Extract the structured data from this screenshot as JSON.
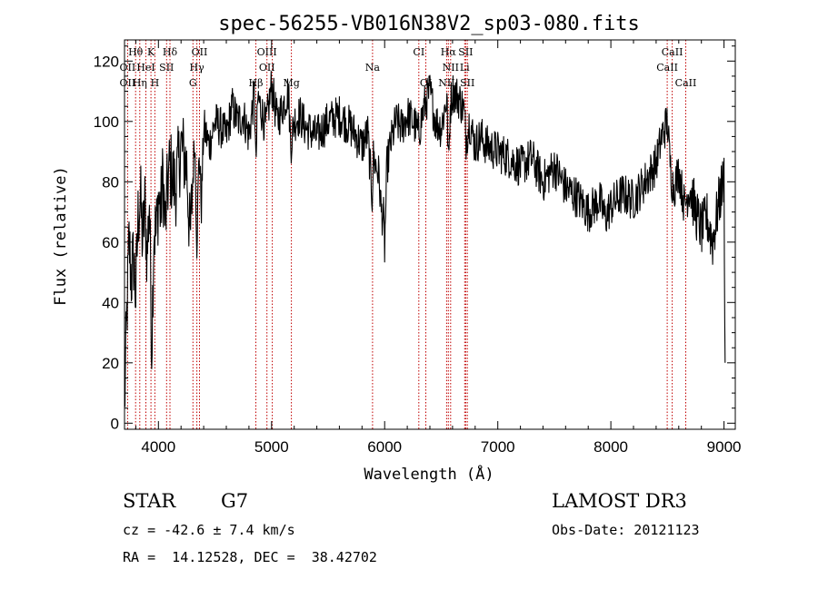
{
  "chart_data": {
    "type": "line",
    "title": "spec-56255-VB016N38V2_sp03-080.fits",
    "xlabel": "Wavelength (Å)",
    "ylabel": "Flux (relative)",
    "xlim": [
      3700,
      9100
    ],
    "ylim": [
      -2,
      127
    ],
    "x_ticks": [
      4000,
      5000,
      6000,
      7000,
      8000,
      9000
    ],
    "y_ticks": [
      0,
      20,
      40,
      60,
      80,
      100,
      120
    ],
    "grid": false,
    "series": [
      {
        "name": "flux",
        "x": [
          3700,
          3720,
          3740,
          3760,
          3780,
          3800,
          3820,
          3840,
          3860,
          3880,
          3900,
          3920,
          3940,
          3960,
          3980,
          4000,
          4020,
          4040,
          4060,
          4080,
          4100,
          4150,
          4200,
          4250,
          4280,
          4300,
          4320,
          4340,
          4360,
          4380,
          4400,
          4450,
          4500,
          4550,
          4600,
          4650,
          4700,
          4750,
          4800,
          4850,
          4860,
          4880,
          4900,
          4950,
          5000,
          5050,
          5100,
          5150,
          5170,
          5200,
          5250,
          5300,
          5400,
          5500,
          5600,
          5700,
          5800,
          5850,
          5890,
          5900,
          5950,
          5970,
          5990,
          6000,
          6020,
          6050,
          6100,
          6150,
          6200,
          6250,
          6300,
          6350,
          6400,
          6450,
          6500,
          6550,
          6565,
          6580,
          6600,
          6650,
          6700,
          6720,
          6750,
          6800,
          6850,
          6900,
          7000,
          7100,
          7200,
          7300,
          7400,
          7500,
          7600,
          7700,
          7800,
          7850,
          7900,
          7950,
          8000,
          8100,
          8200,
          8300,
          8400,
          8450,
          8500,
          8520,
          8540,
          8560,
          8600,
          8650,
          8700,
          8750,
          8800,
          8850,
          8900,
          8950,
          8980,
          9000,
          9010
        ],
        "y": [
          5,
          35,
          60,
          48,
          55,
          42,
          68,
          75,
          60,
          72,
          55,
          75,
          25,
          65,
          62,
          75,
          70,
          82,
          65,
          78,
          85,
          78,
          92,
          85,
          60,
          78,
          95,
          60,
          90,
          72,
          98,
          92,
          100,
          98,
          95,
          105,
          100,
          102,
          95,
          110,
          85,
          108,
          105,
          98,
          112,
          100,
          105,
          110,
          92,
          100,
          102,
          98,
          95,
          100,
          102,
          98,
          92,
          96,
          75,
          88,
          82,
          70,
          68,
          58,
          85,
          92,
          100,
          98,
          102,
          100,
          96,
          105,
          110,
          100,
          98,
          108,
          85,
          105,
          110,
          108,
          104,
          94,
          100,
          92,
          95,
          92,
          90,
          88,
          85,
          88,
          80,
          85,
          78,
          75,
          70,
          72,
          74,
          68,
          72,
          76,
          74,
          80,
          86,
          95,
          100,
          88,
          80,
          78,
          84,
          72,
          78,
          70,
          64,
          68,
          60,
          72,
          78,
          82,
          20
        ],
        "color": "#000000"
      }
    ],
    "annotations": [
      {
        "label": "Hθ",
        "x": 3798,
        "row": 0
      },
      {
        "label": "K",
        "x": 3934,
        "row": 0
      },
      {
        "label": "Hδ",
        "x": 4102,
        "row": 0
      },
      {
        "label": "OII",
        "x": 4363,
        "row": 0
      },
      {
        "label": "OIII",
        "x": 4959,
        "row": 0
      },
      {
        "label": "CI",
        "x": 6302,
        "row": 0
      },
      {
        "label": "Hα",
        "x": 6563,
        "row": 0
      },
      {
        "label": "SII",
        "x": 6717,
        "row": 0
      },
      {
        "label": "CaII",
        "x": 8542,
        "row": 0
      },
      {
        "label": "OII",
        "x": 3727,
        "row": 1
      },
      {
        "label": "HeI",
        "x": 3889,
        "row": 1
      },
      {
        "label": "SII",
        "x": 4072,
        "row": 1
      },
      {
        "label": "Hγ",
        "x": 4340,
        "row": 1
      },
      {
        "label": "OII",
        "x": 4959,
        "row": 1
      },
      {
        "label": "Na",
        "x": 5893,
        "row": 1
      },
      {
        "label": "NII",
        "x": 6583,
        "row": 1
      },
      {
        "label": "Li",
        "x": 6708,
        "row": 1
      },
      {
        "label": "CaII",
        "x": 8498,
        "row": 1
      },
      {
        "label": "OII",
        "x": 3727,
        "row": 2
      },
      {
        "label": "Hη",
        "x": 3835,
        "row": 2
      },
      {
        "label": "H",
        "x": 3968,
        "row": 2
      },
      {
        "label": "G",
        "x": 4305,
        "row": 2
      },
      {
        "label": "Hβ",
        "x": 4861,
        "row": 2
      },
      {
        "label": "Mg",
        "x": 5175,
        "row": 2
      },
      {
        "label": "OI",
        "x": 6364,
        "row": 2
      },
      {
        "label": "NII",
        "x": 6548,
        "row": 2
      },
      {
        "label": "SII",
        "x": 6731,
        "row": 2
      },
      {
        "label": "CaII",
        "x": 8662,
        "row": 2
      }
    ],
    "line_markers": [
      3727,
      3798,
      3835,
      3889,
      3934,
      3968,
      4072,
      4102,
      4305,
      4340,
      4363,
      4861,
      4959,
      5007,
      5175,
      5893,
      6302,
      6364,
      6548,
      6563,
      6583,
      6708,
      6717,
      6731,
      8498,
      8542,
      8662
    ]
  },
  "info": {
    "object_class": "STAR",
    "subclass": "G7",
    "survey": "LAMOST DR3",
    "cz": "cz = -42.6 ± 7.4 km/s",
    "obs_date": "Obs-Date: 20121123",
    "radec": "RA =  14.12528, DEC =  38.42702"
  },
  "colors": {
    "axis": "#000000",
    "spectrum": "#000000",
    "marker": "#c00000"
  }
}
